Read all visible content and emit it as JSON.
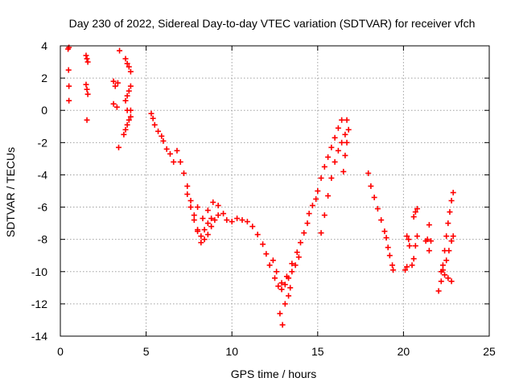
{
  "chart_data": {
    "type": "scatter",
    "title": "Day 230 of 2022, Sidereal Day-to-day VTEC variation (SDTVAR) for receiver vfch",
    "xlabel": "GPS time / hours",
    "ylabel": "SDTVAR / TECUs",
    "xlim": [
      0,
      25
    ],
    "ylim": [
      -14,
      4
    ],
    "grid": true,
    "marker": "+",
    "color": "#ff0000",
    "xticks": [
      0,
      5,
      10,
      15,
      20,
      25
    ],
    "yticks": [
      -14,
      -12,
      -10,
      -8,
      -6,
      -4,
      -2,
      0,
      2,
      4
    ],
    "xtick_labels": [
      "0",
      "5",
      "10",
      "15",
      "20",
      "25"
    ],
    "ytick_labels": [
      "-14",
      "-12",
      "-10",
      "-8",
      "-6",
      "-4",
      "-2",
      "0",
      "2",
      "4"
    ],
    "series": [
      {
        "name": "vfch",
        "points": [
          [
            0.45,
            3.8
          ],
          [
            0.5,
            3.9
          ],
          [
            0.48,
            2.5
          ],
          [
            0.5,
            1.5
          ],
          [
            0.5,
            0.6
          ],
          [
            1.5,
            3.4
          ],
          [
            1.55,
            3.2
          ],
          [
            1.6,
            3.0
          ],
          [
            1.5,
            1.6
          ],
          [
            1.55,
            1.3
          ],
          [
            1.6,
            1.0
          ],
          [
            1.55,
            -0.6
          ],
          [
            3.1,
            1.8
          ],
          [
            3.2,
            1.5
          ],
          [
            3.1,
            0.4
          ],
          [
            3.3,
            0.2
          ],
          [
            3.35,
            1.7
          ],
          [
            3.45,
            3.7
          ],
          [
            3.4,
            -2.3
          ],
          [
            3.8,
            3.2
          ],
          [
            3.9,
            2.9
          ],
          [
            4.0,
            2.7
          ],
          [
            4.1,
            2.4
          ],
          [
            3.8,
            0.6
          ],
          [
            3.9,
            0.9
          ],
          [
            4.0,
            1.2
          ],
          [
            4.1,
            1.5
          ],
          [
            3.9,
            0.0
          ],
          [
            4.1,
            0.0
          ],
          [
            3.7,
            -1.5
          ],
          [
            3.8,
            -1.2
          ],
          [
            3.9,
            -0.9
          ],
          [
            4.0,
            -0.6
          ],
          [
            4.1,
            -0.4
          ],
          [
            5.3,
            -0.2
          ],
          [
            5.4,
            -0.5
          ],
          [
            5.5,
            -0.9
          ],
          [
            5.7,
            -1.3
          ],
          [
            5.9,
            -1.6
          ],
          [
            6.0,
            -1.9
          ],
          [
            6.2,
            -2.4
          ],
          [
            6.4,
            -2.7
          ],
          [
            6.6,
            -3.2
          ],
          [
            6.8,
            -2.5
          ],
          [
            7.0,
            -3.2
          ],
          [
            7.2,
            -3.9
          ],
          [
            7.4,
            -4.7
          ],
          [
            7.6,
            -5.6
          ],
          [
            7.8,
            -6.5
          ],
          [
            8.0,
            -7.4
          ],
          [
            8.2,
            -8.2
          ],
          [
            8.4,
            -8.0
          ],
          [
            8.6,
            -7.7
          ],
          [
            8.8,
            -7.2
          ],
          [
            9.0,
            -6.8
          ],
          [
            9.2,
            -6.5
          ],
          [
            7.4,
            -5.2
          ],
          [
            7.6,
            -6.0
          ],
          [
            7.8,
            -6.8
          ],
          [
            8.0,
            -7.5
          ],
          [
            8.2,
            -7.8
          ],
          [
            8.4,
            -7.4
          ],
          [
            8.6,
            -7.0
          ],
          [
            8.8,
            -6.7
          ],
          [
            8.0,
            -6.0
          ],
          [
            8.3,
            -6.7
          ],
          [
            8.6,
            -6.2
          ],
          [
            8.9,
            -5.7
          ],
          [
            9.2,
            -5.9
          ],
          [
            9.5,
            -6.4
          ],
          [
            9.7,
            -6.8
          ],
          [
            10.0,
            -6.9
          ],
          [
            10.3,
            -6.7
          ],
          [
            10.6,
            -6.8
          ],
          [
            10.9,
            -6.9
          ],
          [
            11.2,
            -7.2
          ],
          [
            11.5,
            -7.7
          ],
          [
            11.8,
            -8.3
          ],
          [
            12.0,
            -8.9
          ],
          [
            12.2,
            -9.6
          ],
          [
            12.5,
            -10.4
          ],
          [
            12.7,
            -10.9
          ],
          [
            12.9,
            -11.1
          ],
          [
            13.1,
            -10.8
          ],
          [
            13.3,
            -10.4
          ],
          [
            13.5,
            -10.0
          ],
          [
            13.7,
            -9.6
          ],
          [
            13.9,
            -9.1
          ],
          [
            12.4,
            -9.3
          ],
          [
            12.6,
            -10.0
          ],
          [
            12.9,
            -10.7
          ],
          [
            13.2,
            -10.3
          ],
          [
            13.5,
            -9.5
          ],
          [
            13.8,
            -8.8
          ],
          [
            14.0,
            -8.2
          ],
          [
            12.8,
            -12.6
          ],
          [
            12.95,
            -13.3
          ],
          [
            13.1,
            -12.0
          ],
          [
            13.3,
            -11.5
          ],
          [
            13.4,
            -11.0
          ],
          [
            14.2,
            -7.6
          ],
          [
            14.4,
            -7.0
          ],
          [
            14.5,
            -6.4
          ],
          [
            14.7,
            -5.9
          ],
          [
            14.9,
            -5.5
          ],
          [
            15.0,
            -5.0
          ],
          [
            15.2,
            -4.2
          ],
          [
            15.4,
            -3.5
          ],
          [
            15.6,
            -2.9
          ],
          [
            15.8,
            -2.3
          ],
          [
            16.0,
            -1.7
          ],
          [
            16.2,
            -1.1
          ],
          [
            16.4,
            -0.6
          ],
          [
            15.2,
            -7.6
          ],
          [
            15.4,
            -6.5
          ],
          [
            15.6,
            -5.3
          ],
          [
            15.8,
            -4.2
          ],
          [
            16.0,
            -3.2
          ],
          [
            16.2,
            -2.5
          ],
          [
            16.4,
            -2.0
          ],
          [
            16.6,
            -1.5
          ],
          [
            16.5,
            -3.8
          ],
          [
            16.6,
            -2.8
          ],
          [
            16.7,
            -2.0
          ],
          [
            16.8,
            -1.2
          ],
          [
            16.7,
            -0.6
          ],
          [
            17.95,
            -3.9
          ],
          [
            18.1,
            -4.7
          ],
          [
            18.3,
            -5.4
          ],
          [
            18.5,
            -6.1
          ],
          [
            18.7,
            -6.8
          ],
          [
            18.9,
            -7.5
          ],
          [
            19.0,
            -7.9
          ],
          [
            19.1,
            -8.5
          ],
          [
            19.2,
            -9.0
          ],
          [
            19.35,
            -9.6
          ],
          [
            19.4,
            -9.9
          ],
          [
            20.1,
            -9.9
          ],
          [
            20.2,
            -9.7
          ],
          [
            20.35,
            -8.4
          ],
          [
            20.2,
            -7.8
          ],
          [
            20.3,
            -8.0
          ],
          [
            20.5,
            -9.6
          ],
          [
            20.6,
            -9.2
          ],
          [
            20.7,
            -8.4
          ],
          [
            20.8,
            -7.8
          ],
          [
            20.6,
            -6.6
          ],
          [
            20.7,
            -6.3
          ],
          [
            20.8,
            -6.1
          ],
          [
            21.3,
            -8.1
          ],
          [
            21.4,
            -8.0
          ],
          [
            21.5,
            -8.7
          ],
          [
            21.5,
            -7.1
          ],
          [
            21.6,
            -8.1
          ],
          [
            22.05,
            -11.2
          ],
          [
            22.2,
            -10.6
          ],
          [
            22.3,
            -9.6
          ],
          [
            22.4,
            -8.7
          ],
          [
            22.5,
            -7.8
          ],
          [
            22.6,
            -7.0
          ],
          [
            22.7,
            -6.3
          ],
          [
            22.8,
            -5.6
          ],
          [
            22.9,
            -5.1
          ],
          [
            22.2,
            -10.0
          ],
          [
            22.4,
            -10.2
          ],
          [
            22.6,
            -10.4
          ],
          [
            22.8,
            -10.6
          ],
          [
            22.3,
            -9.9
          ],
          [
            22.5,
            -9.3
          ],
          [
            22.65,
            -8.7
          ],
          [
            22.8,
            -8.1
          ],
          [
            22.9,
            -7.8
          ]
        ]
      }
    ]
  }
}
